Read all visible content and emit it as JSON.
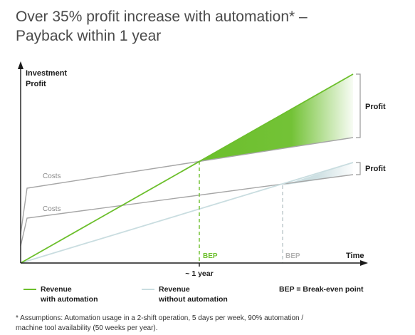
{
  "title": {
    "line1": "Over 35% profit increase with automation* –",
    "line2": "Payback within 1 year"
  },
  "chart_data": {
    "type": "line",
    "ylabel_line1": "Investment",
    "ylabel_line2": "Profit",
    "xlabel": "Time",
    "x_tick": "~ 1 year",
    "series": [
      {
        "name": "Revenue with automation",
        "color": "#6cbf2c",
        "style": "solid"
      },
      {
        "name": "Revenue without automation",
        "color": "#c9dde0",
        "style": "solid"
      },
      {
        "name": "Costs",
        "color": "#a6a6a6",
        "style": "solid"
      },
      {
        "name": "Costs",
        "color": "#a6a6a6",
        "style": "solid"
      }
    ],
    "annotations": {
      "costs_upper": "Costs",
      "costs_lower": "Costs",
      "bep_automation": "BEP",
      "bep_no_automation": "BEP",
      "profit_automation": "Profit",
      "profit_no_automation": "Profit"
    },
    "colors": {
      "automation": "#6cbf2c",
      "no_automation": "#c9dde0",
      "costs": "#a6a6a6",
      "axis": "#1a1a1a"
    }
  },
  "legend": {
    "automation_line1": "Revenue",
    "automation_line2": "with automation",
    "no_automation_line1": "Revenue",
    "no_automation_line2": "without automation",
    "bep_definition": "BEP = Break-even point"
  },
  "footnote": {
    "line1": "* Assumptions: Automation usage in a 2-shift operation, 5 days per week, 90% automation /",
    "line2": "machine tool availability (50 weeks per year)."
  }
}
